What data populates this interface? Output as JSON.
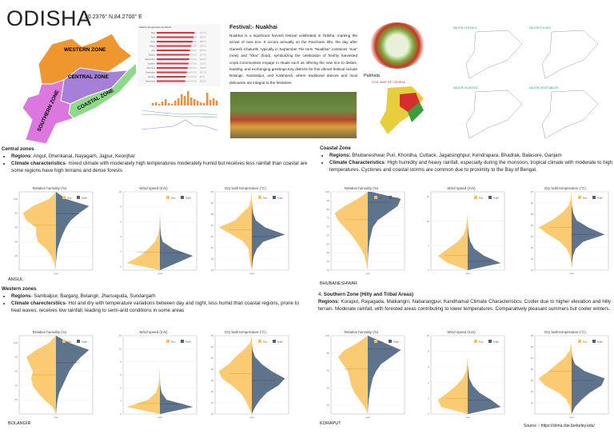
{
  "header": {
    "title": "ODISHA",
    "coords": "20.2376° N,84.2700° E"
  },
  "map": {
    "zones": [
      {
        "name": "WESTERN ZONE",
        "color": "#f0962e"
      },
      {
        "name": "CENTRAL ZONE",
        "color": "#a67fd8"
      },
      {
        "name": "SOUTHERN ZONE",
        "color": "#dd77e0"
      },
      {
        "name": "COASTAL ZONE",
        "color": "#8fd98a"
      }
    ]
  },
  "temp_chart": {
    "title": "Odisha Temperature by Month",
    "months": [
      "May",
      "April",
      "June",
      "March",
      "July",
      "August",
      "September",
      "October",
      "February",
      "November",
      "January",
      "December"
    ],
    "values": [
      37.7,
      36.8,
      35.9,
      34.5,
      33.2,
      32.7,
      32.5,
      31.8,
      30.9,
      30.2,
      29.0,
      28.5
    ],
    "color": "#f02b38"
  },
  "festival": {
    "heading": "Festival:- Nuakhai",
    "text": "Nuakhai is a significant harvest festival celebrated in Odisha, marking the arrival of new rice. It occurs annually on the Panchami tithi, the day after Ganesh Chaturthi, typically in September.The term \"Nuakhai\" combines \"nua\" (new) and \"khai\" (food), symbolizing the celebration of freshly harvested crops.Communities engage in rituals such as offering the new rice to deities, feasting, and exchanging greetings.Key districts for this vibrant festival include Bolangir, Sambalpur, and Kalahandi, where traditional dances and local delicacies are integral to the festivities."
  },
  "food": {
    "label": "Pakhala"
  },
  "crop_maps": [
    {
      "title": "MAJOR CEREALS"
    },
    {
      "title": "MAJOR PULSES"
    },
    {
      "title": "MAJOR OILSEEDS"
    },
    {
      "title": "MAJOR VEGETABLES"
    }
  ],
  "soil_map": {
    "title": "SOIL MAP OF ODISHA"
  },
  "zones": {
    "central": {
      "heading": "Central zones",
      "regions_label": "Regions",
      "regions": ": Angul, Dhenkanal, Nayagarh, Jajpur, Keonjhar",
      "climate_label": "Climate characteristics",
      "climate": "- mixed climate with moderately high temperatures moderately humid but receives less rainfall than coastal are some regions have high terrains and dense forests"
    },
    "coastal": {
      "heading": "Coastal Zone",
      "regions_label": "Regions:",
      "regions": " Bhubaneshwar Puri, Khordha, Cuttack, Jagatsinghpur, Kendrapara, Bhadrak, Balasore, Ganjam",
      "climate_label": "Climate Characteristics",
      "climate": ": High humidity and heavy rainfall, especially during the monsoon, tropical climate with moderate to high temperatures. Cyclones and coastal storms are common due to proximity to the Bay of Bengal."
    },
    "western": {
      "heading": "Western zones",
      "regions_label": "Regions",
      "regions": "- Sambalpur, Bargarg, Bolangir, Jharsuguda, Sundargarh",
      "climate_label": "Climate charecterstiics",
      "climate": "- Hot and dry with temperature variations between day and night, less humid than coastal regions, prone to heat waves, receives low rainfall, leading to semi-arid conditions in some areas"
    },
    "southern": {
      "heading_num": "4. ",
      "heading": "Southern Zone (Hilly and Tribal Areas)",
      "regions_label": "Regions:",
      "regions": " Koraput, Rayagada, Malkangiri, Nabarangpur, Kandhamal Climate Characteristics: Cooler due to higher elevation and hilly terrain. Moderate rainfall, with forested areas contributing to lower temperatures. Comparatively pleasant summers but cooler winters."
    }
  },
  "stations": [
    "ANGUL",
    "BHUBANESHWAR",
    "BOLANGIR",
    "KORAPUT"
  ],
  "legend": {
    "day": "Day",
    "night": "Night",
    "xlabel": "year"
  },
  "colors": {
    "day": "#f9c25a",
    "night": "#4d6480"
  },
  "chart_data": [
    {
      "station": "ANGUL",
      "type": "violin",
      "title": "Relative humidity (%)",
      "ylim": [
        0,
        110
      ],
      "yticks": [
        20,
        40,
        60,
        80,
        100
      ],
      "day_median": 63,
      "night_median": 79,
      "day_density": [
        0,
        0.05,
        0.15,
        0.3,
        0.55,
        0.6,
        0.6,
        0.9,
        1.0,
        0.7,
        0.2,
        0
      ],
      "night_density": [
        0,
        0,
        0.02,
        0.05,
        0.12,
        0.2,
        0.3,
        0.45,
        0.7,
        1.0,
        0.3,
        0
      ]
    },
    {
      "station": "ANGUL",
      "type": "violin",
      "title": "Wind speed (m/s)",
      "ylim": [
        -0.5,
        10
      ],
      "yticks": [
        0,
        2,
        4,
        6,
        8,
        10
      ],
      "day_median": 1.9,
      "night_median": 1.8,
      "day_density": [
        0,
        1.0,
        0.6,
        0.35,
        0.15,
        0.05,
        0.02,
        0.01,
        0,
        0,
        0,
        0
      ],
      "night_density": [
        0,
        0.5,
        1.0,
        0.4,
        0.08,
        0.03,
        0.01,
        0.005,
        0,
        0,
        0,
        0
      ]
    },
    {
      "station": "ANGUL",
      "type": "violin",
      "title": "Dry bulb temperature (°C)",
      "ylim": [
        10,
        45
      ],
      "yticks": [
        10,
        15,
        20,
        25,
        30,
        35,
        40,
        45
      ],
      "day_median": 28,
      "night_median": 25,
      "day_density": [
        0,
        0.05,
        0.08,
        0.1,
        0.25,
        0.6,
        1.0,
        0.5,
        0.3,
        0.08,
        0.02,
        0
      ],
      "night_density": [
        0,
        0.02,
        0.06,
        0.15,
        0.35,
        1.0,
        0.4,
        0.12,
        0.04,
        0.01,
        0,
        0
      ]
    },
    {
      "station": "BHUBANESHWAR",
      "type": "violin",
      "title": "Relative humidity (%)",
      "ylim": [
        10,
        100
      ],
      "yticks": [
        10,
        20,
        30,
        40,
        50,
        60,
        70,
        80,
        90,
        100
      ],
      "day_median": 68,
      "night_median": 88,
      "day_density": [
        0,
        0.05,
        0.1,
        0.2,
        0.35,
        0.5,
        0.7,
        0.9,
        1.0,
        0.7,
        0.3,
        0
      ],
      "night_density": [
        0,
        0,
        0.01,
        0.03,
        0.05,
        0.1,
        0.15,
        0.3,
        0.6,
        0.9,
        1.0,
        0.1
      ]
    },
    {
      "station": "BHUBANESHWAR",
      "type": "violin",
      "title": "Wind speed (m/s)",
      "ylim": [
        0,
        16
      ],
      "yticks": [
        0,
        5,
        10,
        15
      ],
      "day_median": 3,
      "night_median": 1.8,
      "day_density": [
        0,
        0.6,
        0.9,
        0.6,
        0.3,
        0.12,
        0.05,
        0.02,
        0,
        0,
        0,
        0
      ],
      "night_density": [
        0,
        1.0,
        0.5,
        0.2,
        0.08,
        0.03,
        0.01,
        0,
        0,
        0,
        0,
        0
      ]
    },
    {
      "station": "BHUBANESHWAR",
      "type": "violin",
      "title": "Dry bulb temperature (°C)",
      "ylim": [
        10,
        45
      ],
      "yticks": [
        10,
        15,
        20,
        25,
        30,
        35,
        40,
        45
      ],
      "day_median": 29,
      "night_median": 26,
      "day_density": [
        0,
        0.01,
        0.05,
        0.15,
        0.35,
        0.7,
        1.0,
        0.6,
        0.3,
        0.1,
        0.02,
        0
      ],
      "night_density": [
        0,
        0.01,
        0.04,
        0.12,
        0.35,
        1.0,
        0.5,
        0.15,
        0.05,
        0.01,
        0,
        0
      ]
    },
    {
      "station": "BOLANGIR",
      "type": "violin",
      "title": "Relative humidity (%)",
      "ylim": [
        0,
        110
      ],
      "yticks": [
        20,
        40,
        60,
        80,
        100
      ],
      "day_median": 55,
      "night_median": 72,
      "day_density": [
        0,
        0.1,
        0.35,
        0.55,
        0.7,
        0.75,
        0.7,
        0.8,
        0.9,
        0.6,
        0.2,
        0
      ],
      "night_density": [
        0,
        0.02,
        0.05,
        0.1,
        0.2,
        0.3,
        0.4,
        0.55,
        0.75,
        1.0,
        0.4,
        0
      ]
    },
    {
      "station": "BOLANGIR",
      "type": "violin",
      "title": "Wind speed (m/s)",
      "ylim": [
        0,
        12
      ],
      "yticks": [
        0,
        2,
        4,
        6,
        8,
        10,
        12
      ],
      "day_median": 1.6,
      "night_median": 1.5,
      "day_density": [
        0,
        1.0,
        0.35,
        0.12,
        0.05,
        0.02,
        0.01,
        0,
        0,
        0,
        0,
        0
      ],
      "night_density": [
        0,
        1.0,
        0.2,
        0.05,
        0.01,
        0,
        0,
        0,
        0,
        0,
        0,
        0
      ]
    },
    {
      "station": "BOLANGIR",
      "type": "violin",
      "title": "Dry bulb temperature (°C)",
      "ylim": [
        10,
        45
      ],
      "yticks": [
        10,
        15,
        20,
        25,
        30,
        35,
        40,
        45
      ],
      "day_median": 28,
      "night_median": 25,
      "day_density": [
        0,
        0.1,
        0.2,
        0.35,
        0.6,
        0.9,
        1.0,
        0.7,
        0.5,
        0.25,
        0.05,
        0
      ],
      "night_density": [
        0,
        0.1,
        0.25,
        0.45,
        0.8,
        1.0,
        0.6,
        0.3,
        0.1,
        0.02,
        0,
        0
      ]
    },
    {
      "station": "KORAPUT",
      "type": "violin",
      "title": "Relative humidity (%)",
      "ylim": [
        10,
        100
      ],
      "yticks": [
        20,
        40,
        60,
        80,
        100
      ],
      "day_median": 62,
      "night_median": 85,
      "day_density": [
        0,
        0.1,
        0.25,
        0.4,
        0.5,
        0.55,
        0.6,
        0.75,
        0.9,
        0.7,
        0.3,
        0
      ],
      "night_density": [
        0,
        0.01,
        0.03,
        0.06,
        0.1,
        0.15,
        0.25,
        0.4,
        0.7,
        1.0,
        0.5,
        0
      ]
    },
    {
      "station": "KORAPUT",
      "type": "violin",
      "title": "Wind speed (m/s)",
      "ylim": [
        0,
        10
      ],
      "yticks": [
        0,
        2,
        4,
        6,
        8,
        10
      ],
      "day_median": 2,
      "night_median": 1.8,
      "day_density": [
        0,
        0.8,
        0.9,
        0.6,
        0.35,
        0.15,
        0.05,
        0.02,
        0,
        0,
        0,
        0
      ],
      "night_density": [
        0,
        1.0,
        0.7,
        0.35,
        0.15,
        0.05,
        0.02,
        0,
        0,
        0,
        0,
        0
      ]
    },
    {
      "station": "KORAPUT",
      "type": "violin",
      "title": "Dry bulb temperature (°C)",
      "ylim": [
        5,
        40
      ],
      "yticks": [
        10,
        15,
        20,
        25,
        30,
        35,
        40
      ],
      "day_median": 24,
      "night_median": 20,
      "day_density": [
        0,
        0.05,
        0.15,
        0.4,
        0.8,
        1.0,
        0.7,
        0.45,
        0.2,
        0.05,
        0,
        0
      ],
      "night_density": [
        0,
        0.1,
        0.3,
        0.55,
        0.9,
        1.0,
        0.4,
        0.1,
        0.02,
        0,
        0,
        0
      ]
    }
  ],
  "source": "Source :- https://clima.cbe.berkeley.edu/"
}
